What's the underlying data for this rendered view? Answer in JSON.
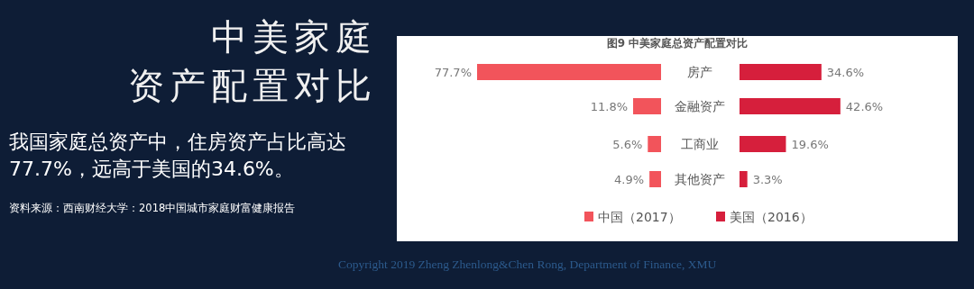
{
  "chart_data": [
    {
      "type": "bar",
      "orientation": "horizontal",
      "title": "图9 中美家庭总资产配置对比",
      "categories": [
        "房产",
        "金融资产",
        "工商业",
        "其他资产"
      ],
      "series": [
        {
          "name": "中国（2017）",
          "color": "#f2545b",
          "values": [
            77.7,
            11.8,
            5.6,
            4.9
          ],
          "value_labels": [
            "77.7%",
            "11.8%",
            "5.6%",
            "4.9%"
          ]
        }
      ],
      "legend": "bottom",
      "annotations": [
        "中美家庭",
        "资产配置对比",
        "我国家庭总资产中，住房资产占比高达77.7%，远高于美国的34.6%。",
        "资料来源：西南财经大学：2018中国城市家庭财富健康报告",
        "Copyright 2019 Zheng Zhenlong&Chen Rong, Department of Finance, XMU"
      ]
    },
    {
      "type": "bar",
      "orientation": "horizontal",
      "categories": [
        null,
        null,
        null,
        null
      ],
      "series": [
        {
          "name": "美国（2016）",
          "color": "#d61f3c",
          "values": [
            34.6,
            42.6,
            19.6,
            3.3
          ],
          "value_labels": [
            "34.6%",
            "42.6%",
            "19.6%",
            "3.3%"
          ]
        }
      ],
      "legend": "bottom"
    }
  ]
}
